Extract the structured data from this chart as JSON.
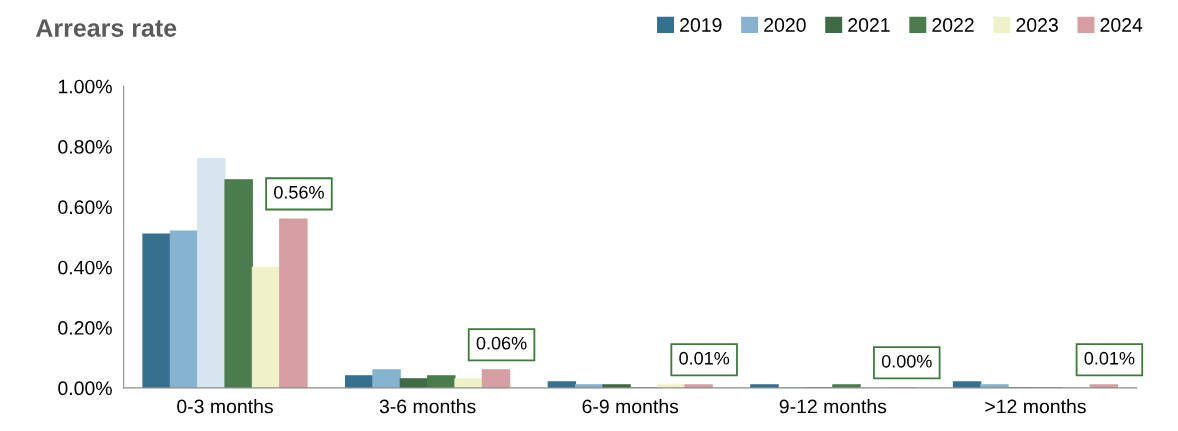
{
  "chart_data": {
    "type": "bar",
    "title": "Arrears rate",
    "categories": [
      "0-3 months",
      "3-6 months",
      "6-9 months",
      "9-12 months",
      ">12 months"
    ],
    "series": [
      {
        "name": "2019",
        "color": "#36708f",
        "values": [
          0.51,
          0.04,
          0.02,
          0.01,
          0.02
        ]
      },
      {
        "name": "2020",
        "color": "#86b3cf",
        "values": [
          0.52,
          0.06,
          0.01,
          0.0,
          0.01
        ]
      },
      {
        "name": "2021",
        "color": "#3e6b45",
        "colors": [
          "#d6e5ef",
          "#3e6b45",
          "#3e6b45",
          "#3e6b45",
          "#3e6b45"
        ],
        "values": [
          0.76,
          0.03,
          0.01,
          0.0,
          0.0
        ]
      },
      {
        "name": "2022",
        "color": "#4a7c4e",
        "values": [
          0.69,
          0.04,
          0.0,
          0.01,
          0.0
        ]
      },
      {
        "name": "2023",
        "color": "#eff2c8",
        "values": [
          0.4,
          0.03,
          0.01,
          0.0,
          0.0
        ]
      },
      {
        "name": "2024",
        "color": "#d49ea3",
        "values": [
          0.56,
          0.06,
          0.01,
          0.0,
          0.01
        ],
        "value_labels": [
          "0.56%",
          "0.06%",
          "0.01%",
          "0.00%",
          "0.01%"
        ]
      }
    ],
    "ylim": [
      0,
      1.0
    ],
    "yticks": [
      {
        "value": 0,
        "label": "0.00%"
      },
      {
        "value": 0.2,
        "label": "0.20%"
      },
      {
        "value": 0.4,
        "label": "0.40%"
      },
      {
        "value": 0.6,
        "label": "0.60%"
      },
      {
        "value": 0.8,
        "label": "0.80%"
      },
      {
        "value": 1.0,
        "label": "1.00%"
      }
    ],
    "grid": false,
    "legend": "top right"
  }
}
